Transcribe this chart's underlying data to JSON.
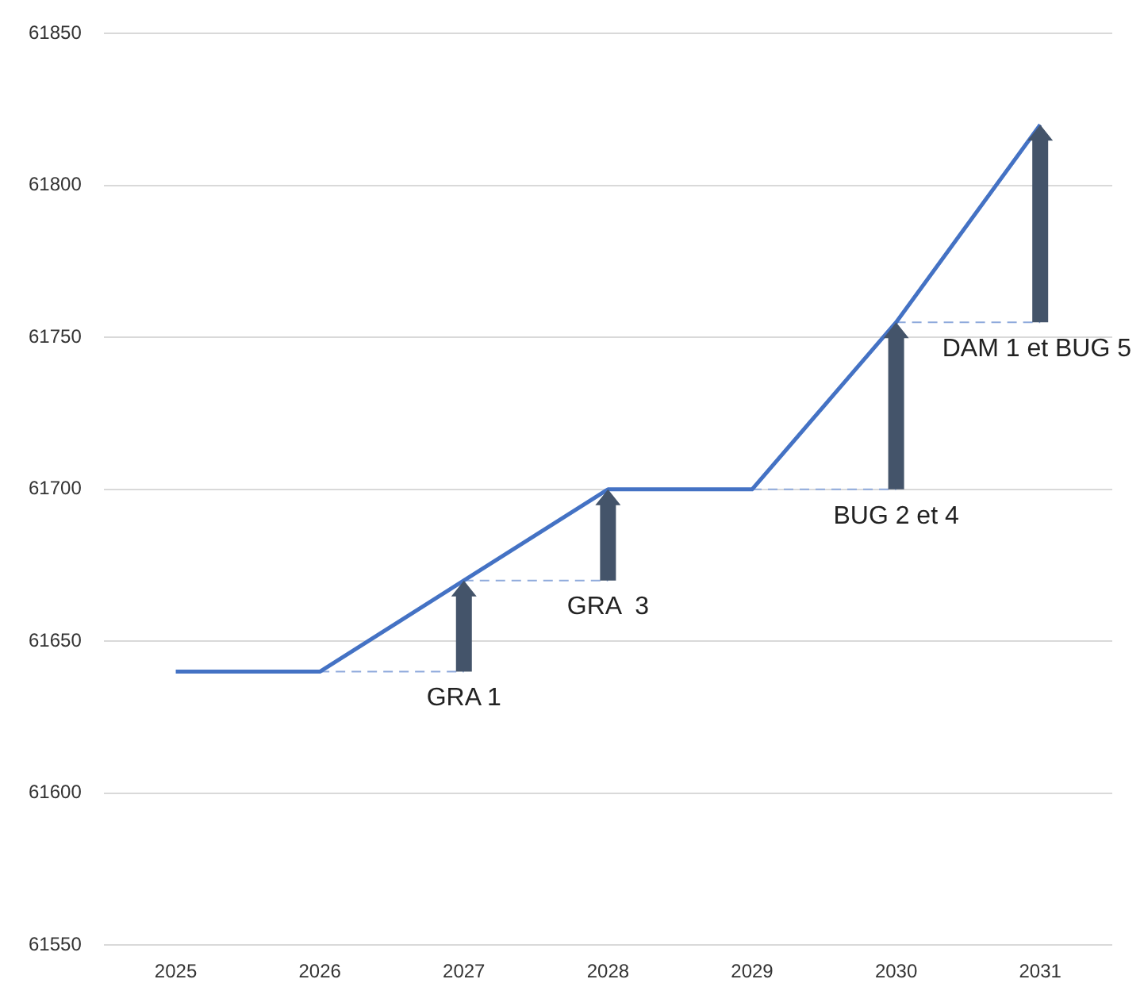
{
  "chart_data": {
    "type": "line",
    "categories": [
      "2025",
      "2026",
      "2027",
      "2028",
      "2029",
      "2030",
      "2031"
    ],
    "series": [
      {
        "color": "#4472c4",
        "values": [
          61640,
          61640,
          61670,
          61700,
          61700,
          61755,
          61820
        ]
      },
      {
        "color": "#8faadc",
        "line_style": "dashed",
        "values": [
          null,
          61640,
          61640,
          null,
          null,
          null,
          null
        ]
      },
      {
        "color": "#8faadc",
        "line_style": "dashed",
        "values": [
          null,
          null,
          61670,
          61670,
          null,
          null,
          null
        ]
      },
      {
        "color": "#8faadc",
        "line_style": "dashed",
        "values": [
          null,
          null,
          null,
          null,
          61700,
          61700,
          null
        ]
      },
      {
        "color": "#8faadc",
        "line_style": "dashed",
        "values": [
          null,
          null,
          null,
          null,
          null,
          61755,
          61755
        ]
      }
    ],
    "ylim": [
      61550,
      61850
    ],
    "yticks": [
      61550,
      61600,
      61650,
      61700,
      61750,
      61800,
      61850
    ],
    "grid": "y",
    "legend": false,
    "marker": "none",
    "line_style": "solid",
    "annotations": [
      {
        "text": "GRA 1",
        "x": "2027",
        "y": 61640
      },
      {
        "text": "GRA  3",
        "x": "2028",
        "y": 61670
      },
      {
        "text": "BUG 2 et 4",
        "x": "2030",
        "y": 61700
      },
      {
        "text": "DAM 1 et BUG 5",
        "x": "2031",
        "y": 61755
      }
    ]
  }
}
